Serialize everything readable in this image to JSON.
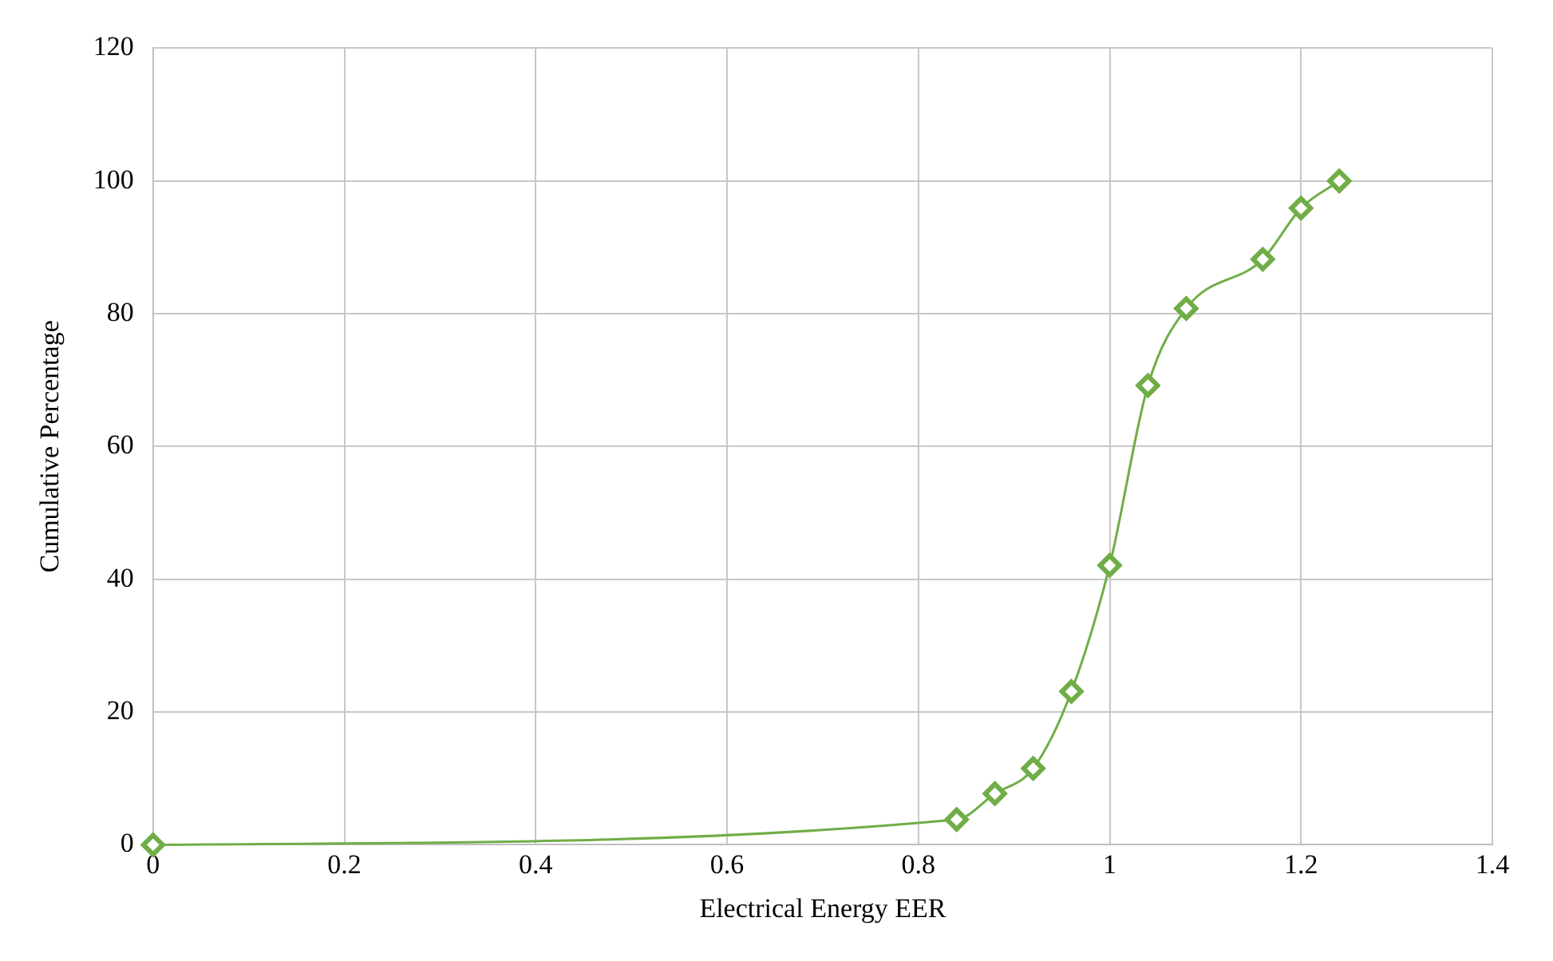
{
  "chart_data": {
    "type": "line",
    "xlabel": "Electrical Energy EER",
    "ylabel": "Cumulative Percentage",
    "x": [
      0,
      0.84,
      0.88,
      0.92,
      0.96,
      1.0,
      1.04,
      1.08,
      1.16,
      1.2,
      1.24
    ],
    "series": [
      {
        "color": "#70ad47",
        "values": [
          0,
          3.8,
          7.7,
          11.5,
          23.1,
          42.1,
          69.2,
          80.8,
          88.2,
          95.9,
          100
        ]
      }
    ],
    "xlim": [
      0,
      1.4
    ],
    "xticks": [
      0,
      0.2,
      0.4,
      0.6,
      0.8,
      1,
      1.2,
      1.4
    ],
    "ylim": [
      0,
      120
    ],
    "yticks": [
      0,
      20,
      40,
      60,
      80,
      100,
      120
    ],
    "grid": true,
    "legend": false,
    "marker": "diamond",
    "line_style": "solid"
  }
}
